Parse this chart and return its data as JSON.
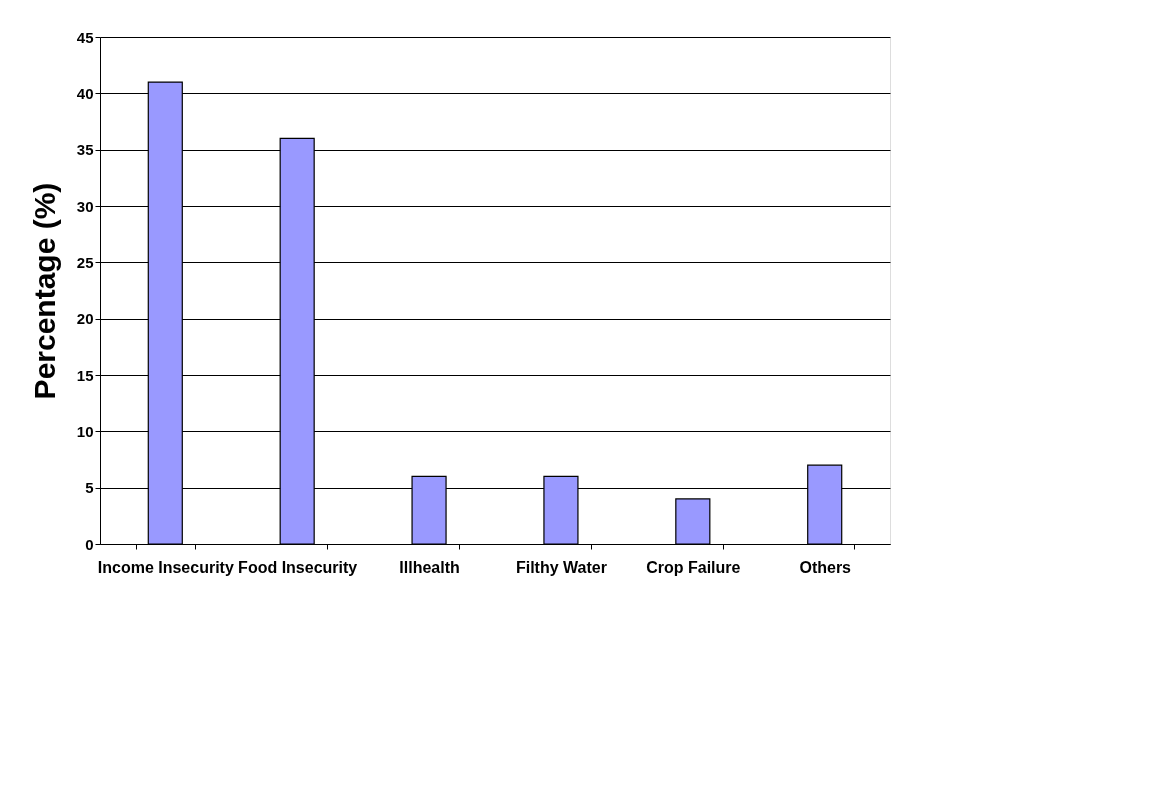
{
  "chart_data": {
    "type": "bar",
    "ylabel": "Percentage (%)",
    "categories": [
      "Income Insecurity",
      "Food Insecurity",
      "Illhealth",
      "Filthy Water",
      "Crop Failure",
      "Others"
    ],
    "values": [
      41,
      36,
      6,
      6,
      4,
      7
    ],
    "color": "#9999ff",
    "ylim": [
      0,
      45
    ],
    "yticks": [
      0,
      5,
      10,
      15,
      20,
      25,
      30,
      35,
      40,
      45
    ],
    "grid": "y"
  }
}
